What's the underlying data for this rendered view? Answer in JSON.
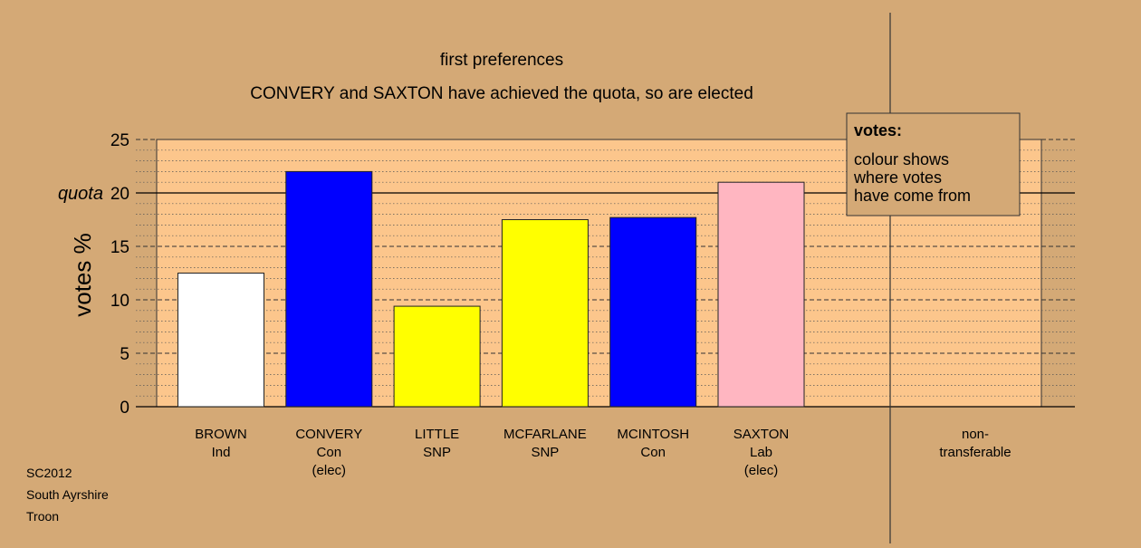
{
  "chart_data": {
    "type": "bar",
    "title": "first preferences",
    "subtitle": "CONVERY and SAXTON have achieved the quota, so are elected",
    "ylabel": "votes %",
    "ylim": [
      0,
      25
    ],
    "yticks": [
      0,
      5,
      10,
      15,
      20,
      25
    ],
    "quota": 20,
    "quota_label": "quota",
    "grid": true,
    "categories": [
      {
        "lines": [
          "BROWN",
          "Ind"
        ],
        "value": 12.5,
        "color": "#ffffff"
      },
      {
        "lines": [
          "CONVERY",
          "Con",
          "(elec)"
        ],
        "value": 22.0,
        "color": "#0000ff"
      },
      {
        "lines": [
          "LITTLE",
          "SNP"
        ],
        "value": 9.4,
        "color": "#ffff00"
      },
      {
        "lines": [
          "MCFARLANE",
          "SNP"
        ],
        "value": 17.5,
        "color": "#ffff00"
      },
      {
        "lines": [
          "MCINTOSH",
          "Con"
        ],
        "value": 17.7,
        "color": "#0000ff"
      },
      {
        "lines": [
          "SAXTON",
          "Lab",
          "(elec)"
        ],
        "value": 21.0,
        "color": "#ffb6c1"
      }
    ],
    "non_transferable": {
      "lines": [
        "non-",
        "transferable"
      ],
      "value": 0
    },
    "legend": {
      "placement": "top-right",
      "title": "votes:",
      "lines": [
        "colour shows",
        "where votes",
        "have come from"
      ]
    }
  },
  "footer": [
    "SC2012",
    "South Ayrshire",
    "Troon"
  ],
  "colors": {
    "background": "#d4a976",
    "plot_area": "#fcc68c",
    "legend_box": "#d4a976"
  }
}
